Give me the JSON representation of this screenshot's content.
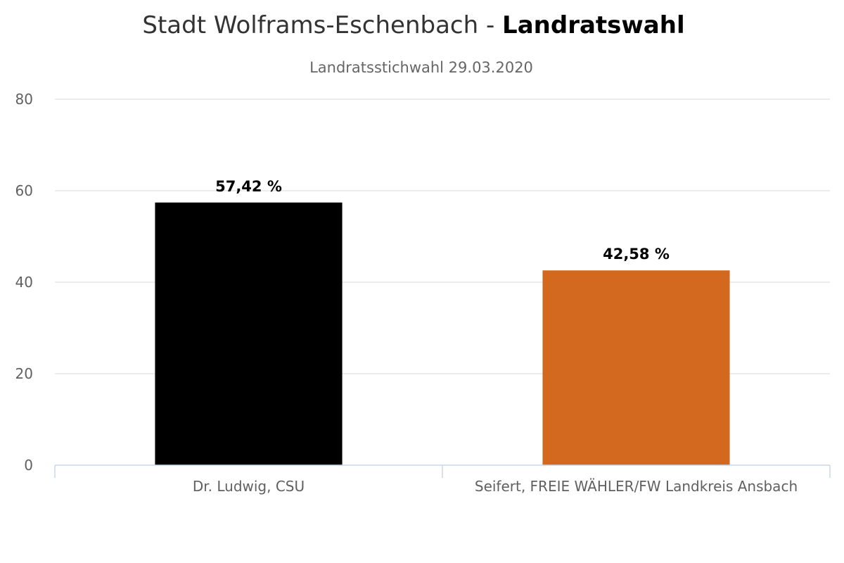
{
  "chart_data": {
    "type": "bar",
    "title": {
      "normal": "Stadt Wolframs-Eschenbach - ",
      "bold": "Landratswahl"
    },
    "subtitle": "Landratsstichwahl 29.03.2020",
    "categories": [
      "Dr. Ludwig, CSU",
      "Seifert, FREIE WÄHLER/FW Landkreis Ansbach"
    ],
    "values": [
      57.42,
      42.58
    ],
    "data_labels": [
      "57,42 %",
      "42,58 %"
    ],
    "colors": [
      "#000000",
      "#d2691e"
    ],
    "ylim": [
      0,
      80
    ],
    "yticks": [
      "0",
      "20",
      "40",
      "60",
      "80"
    ],
    "ytick_values": [
      0,
      20,
      40,
      60,
      80
    ],
    "grid": true,
    "legend": "none",
    "xlabel": "",
    "ylabel": ""
  }
}
